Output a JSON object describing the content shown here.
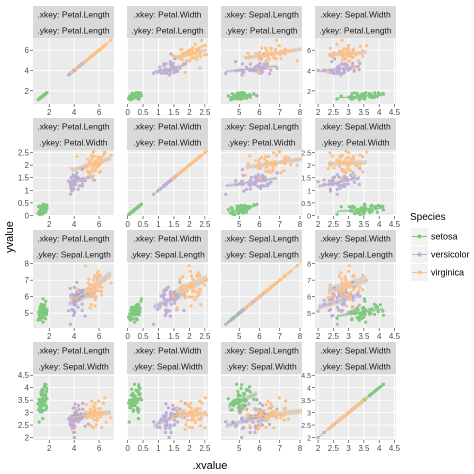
{
  "chart_data": {
    "type": "scatter",
    "facet_label_prefix_x": ".xkey:",
    "facet_label_prefix_y": ".ykey:",
    "xlabel": ".xvalue",
    "ylabel": "yvalue",
    "grid": true,
    "smooth_lines": true,
    "legend": {
      "title": "Species",
      "position": "right",
      "entries": [
        {
          "name": "setosa",
          "color": "#7fc97f"
        },
        {
          "name": "versicolor",
          "color": "#beaed4"
        },
        {
          "name": "virginica",
          "color": "#fdc086"
        }
      ]
    },
    "variables": [
      "Petal.Length",
      "Petal.Width",
      "Sepal.Length",
      "Sepal.Width"
    ],
    "axis_ranges": {
      "Petal.Length": [
        0.7,
        7.2
      ],
      "Petal.Width": [
        -0.02,
        2.6
      ],
      "Sepal.Length": [
        4.1,
        8.1
      ],
      "Sepal.Width": [
        1.9,
        4.55
      ]
    },
    "axis_ticks": {
      "Petal.Length": [
        2,
        4,
        6
      ],
      "Petal.Width": [
        0.0,
        0.5,
        1.0,
        1.5,
        2.0,
        2.5
      ],
      "Sepal.Length": [
        5,
        6,
        7,
        8
      ],
      "Sepal.Width": [
        2.0,
        2.5,
        3.0,
        3.5,
        4.0,
        4.5
      ]
    },
    "species_distribution": {
      "setosa": {
        "Petal.Length": [
          1.46,
          0.17
        ],
        "Petal.Width": [
          0.25,
          0.1
        ],
        "Sepal.Length": [
          5.0,
          0.35
        ],
        "Sepal.Width": [
          3.43,
          0.38
        ]
      },
      "versicolor": {
        "Petal.Length": [
          4.26,
          0.47
        ],
        "Petal.Width": [
          1.33,
          0.2
        ],
        "Sepal.Length": [
          5.94,
          0.52
        ],
        "Sepal.Width": [
          2.77,
          0.31
        ]
      },
      "virginica": {
        "Petal.Length": [
          5.55,
          0.55
        ],
        "Petal.Width": [
          2.03,
          0.27
        ],
        "Sepal.Length": [
          6.59,
          0.64
        ],
        "Sepal.Width": [
          2.97,
          0.32
        ]
      }
    },
    "points_per_species": 50
  }
}
